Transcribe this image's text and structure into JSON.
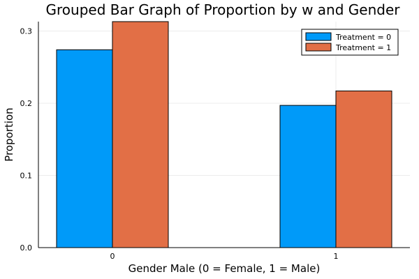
{
  "chart_data": {
    "type": "bar",
    "title": "Grouped Bar Graph of Proportion by w and Gender",
    "xlabel": "Gender Male (0 = Female, 1 = Male)",
    "ylabel": "Proportion",
    "categories": [
      "0",
      "1"
    ],
    "series": [
      {
        "name": "Treatment = 0",
        "values": [
          0.274,
          0.197
        ],
        "color": "#009af9"
      },
      {
        "name": "Treatment = 1",
        "values": [
          0.313,
          0.217
        ],
        "color": "#e26f46"
      }
    ],
    "ylim": [
      0,
      0.313
    ],
    "yticks": [
      "0.0",
      "0.1",
      "0.2",
      "0.3"
    ],
    "grid": true,
    "legend_position": "top-right"
  }
}
